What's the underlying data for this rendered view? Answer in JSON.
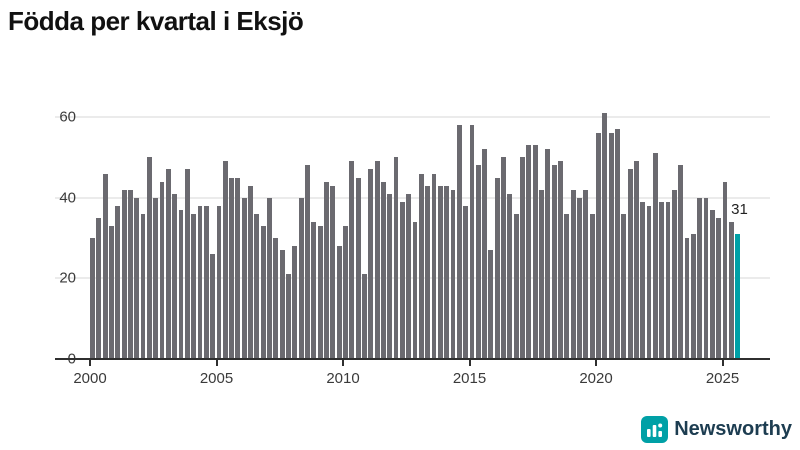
{
  "title": "Födda per kvartal i Eksjö",
  "chart_data": {
    "type": "bar",
    "title": "Födda per kvartal i Eksjö",
    "xlabel": "",
    "ylabel": "",
    "ylim": [
      0,
      60
    ],
    "grid": "horizontal",
    "y_ticks": [
      0,
      20,
      40,
      60
    ],
    "x_tick_labels": [
      "2000",
      "2005",
      "2010",
      "2015",
      "2020",
      "2025"
    ],
    "unit": "births per quarter",
    "data_by_year": {
      "2000": [
        30,
        35,
        46,
        33
      ],
      "2001": [
        38,
        42,
        42,
        40
      ],
      "2002": [
        36,
        50,
        40,
        44
      ],
      "2003": [
        47,
        41,
        37,
        47
      ],
      "2004": [
        36,
        38,
        38,
        26
      ],
      "2005": [
        38,
        49,
        45,
        45
      ],
      "2006": [
        40,
        43,
        36,
        33
      ],
      "2007": [
        40,
        30,
        27,
        21
      ],
      "2008": [
        28,
        40,
        48,
        34
      ],
      "2009": [
        33,
        44,
        43,
        28
      ],
      "2010": [
        33,
        49,
        45,
        21
      ],
      "2011": [
        47,
        49,
        44,
        41
      ],
      "2012": [
        50,
        39,
        41,
        34
      ],
      "2013": [
        46,
        43,
        46,
        43
      ],
      "2014": [
        43,
        42,
        58,
        38
      ],
      "2015": [
        58,
        48,
        52,
        27
      ],
      "2016": [
        45,
        50,
        41,
        36
      ],
      "2017": [
        50,
        53,
        53,
        42
      ],
      "2018": [
        52,
        48,
        49,
        36
      ],
      "2019": [
        42,
        40,
        42,
        36
      ],
      "2020": [
        56,
        61,
        56,
        57
      ],
      "2021": [
        36,
        47,
        49,
        39
      ],
      "2022": [
        38,
        51,
        39,
        39
      ],
      "2023": [
        42,
        48,
        30,
        31
      ],
      "2024": [
        40,
        40,
        37,
        35
      ],
      "2025": [
        44,
        34,
        31
      ]
    },
    "highlight": {
      "year": "2025",
      "quarter": 3,
      "value": 31
    },
    "annotation": {
      "text": "31"
    },
    "colors": {
      "bar": "#6b6a70",
      "highlight": "#00a0a6",
      "grid": "#ebebeb",
      "axis": "#2f2f2f"
    }
  },
  "logo": {
    "name": "Newsworthy",
    "text": "Newsworthy",
    "icon_color": "#00a0a6",
    "text_color": "#1d3d51"
  }
}
